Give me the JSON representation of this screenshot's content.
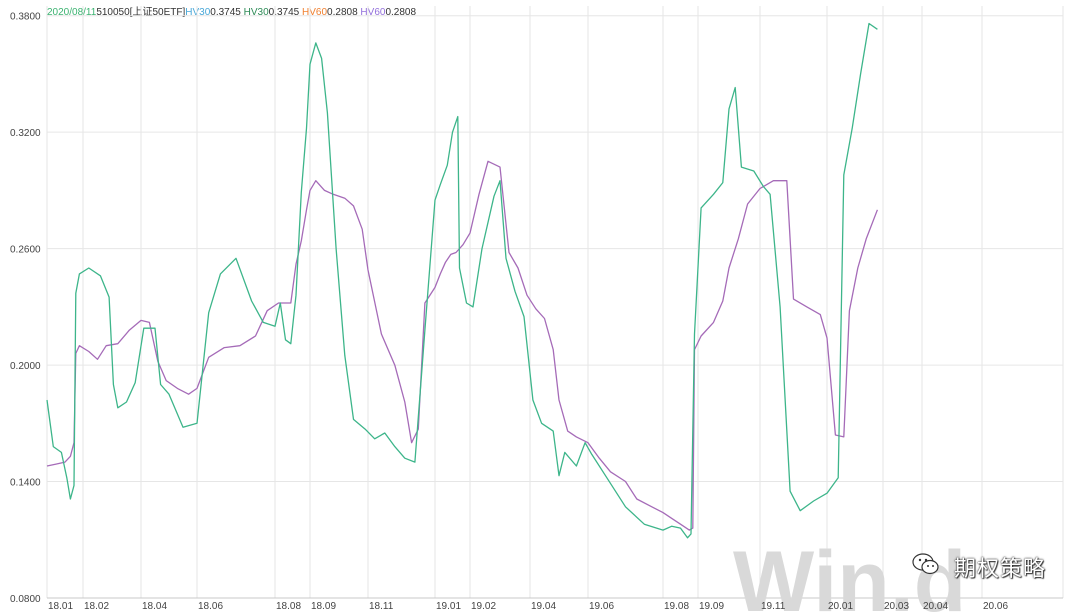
{
  "legend": {
    "date": "2020/08/11",
    "code": "510050[上证50ETF]",
    "hv30_a_label": "HV30",
    "hv30_a_value": "0.3745",
    "hv30_b_label": "HV30",
    "hv30_b_value": "0.3745",
    "hv60_a_label": "HV60",
    "hv60_a_value": "0.2808",
    "hv60_b_label": "HV60",
    "hv60_b_value": "0.2808"
  },
  "colors": {
    "date": "#3cb371",
    "code": "#333333",
    "hv30_a": "#4aa8d8",
    "hv30_b": "#2e8b57",
    "hv60_a": "#f08030",
    "hv60_b": "#9370db",
    "hv30_line": "#3db58a",
    "hv60_line": "#a56bb8",
    "grid": "#e6e6e6",
    "watermark": "#d9d9d9"
  },
  "watermark": "Win.d",
  "brand": "期权策略",
  "brand_icon": "wechat-icon",
  "chart_data": {
    "type": "line",
    "x": [
      "18.01",
      "18.02",
      "18.04",
      "18.06",
      "18.08",
      "18.09",
      "18.11",
      "19.01",
      "19.02",
      "19.04",
      "19.06",
      "19.08",
      "19.09",
      "19.11",
      "20.01",
      "20.03",
      "20.04",
      "20.06"
    ],
    "yticks": [
      "0.0800",
      "0.1400",
      "0.2000",
      "0.2600",
      "0.3200",
      "0.3800"
    ],
    "ylim": [
      0.08,
      0.385
    ],
    "grid": true,
    "series": [
      {
        "name": "HV30",
        "points": [
          [
            0,
            0.182
          ],
          [
            0.35,
            0.158
          ],
          [
            0.8,
            0.155
          ],
          [
            1.1,
            0.142
          ],
          [
            1.3,
            0.131
          ],
          [
            1.5,
            0.138
          ],
          [
            1.6,
            0.237
          ],
          [
            1.8,
            0.247
          ],
          [
            2.2,
            0.25
          ],
          [
            2.6,
            0.246
          ],
          [
            2.9,
            0.235
          ],
          [
            3.05,
            0.19
          ],
          [
            3.2,
            0.178
          ],
          [
            3.5,
            0.181
          ],
          [
            3.8,
            0.191
          ],
          [
            4.1,
            0.219
          ],
          [
            4.5,
            0.219
          ],
          [
            4.7,
            0.19
          ],
          [
            5.0,
            0.185
          ],
          [
            5.5,
            0.168
          ],
          [
            6.0,
            0.17
          ],
          [
            6.3,
            0.227
          ],
          [
            6.6,
            0.247
          ],
          [
            7.0,
            0.255
          ],
          [
            7.4,
            0.233
          ],
          [
            7.7,
            0.222
          ],
          [
            8.0,
            0.22
          ],
          [
            8.3,
            0.232
          ],
          [
            8.6,
            0.213
          ],
          [
            8.9,
            0.211
          ],
          [
            9.2,
            0.236
          ],
          [
            9.5,
            0.289
          ],
          [
            9.8,
            0.322
          ],
          [
            10.0,
            0.355
          ],
          [
            10.2,
            0.366
          ],
          [
            10.4,
            0.358
          ],
          [
            10.6,
            0.33
          ],
          [
            10.9,
            0.26
          ],
          [
            11.2,
            0.205
          ],
          [
            11.5,
            0.172
          ],
          [
            11.9,
            0.167
          ],
          [
            12.2,
            0.162
          ],
          [
            12.5,
            0.165
          ],
          [
            12.8,
            0.158
          ],
          [
            13.1,
            0.152
          ],
          [
            13.4,
            0.15
          ],
          [
            13.7,
            0.218
          ],
          [
            14.0,
            0.285
          ],
          [
            14.3,
            0.293
          ],
          [
            14.7,
            0.303
          ],
          [
            15.0,
            0.32
          ],
          [
            15.3,
            0.328
          ],
          [
            15.4,
            0.25
          ],
          [
            15.8,
            0.232
          ],
          [
            16.1,
            0.23
          ],
          [
            16.4,
            0.26
          ],
          [
            16.8,
            0.287
          ],
          [
            17.0,
            0.295
          ],
          [
            17.2,
            0.255
          ],
          [
            17.5,
            0.238
          ],
          [
            17.8,
            0.225
          ],
          [
            18.1,
            0.182
          ],
          [
            18.4,
            0.17
          ],
          [
            18.8,
            0.166
          ],
          [
            19.0,
            0.143
          ],
          [
            19.2,
            0.155
          ],
          [
            19.6,
            0.148
          ],
          [
            19.9,
            0.16
          ],
          [
            20.1,
            0.154
          ],
          [
            20.5,
            0.142
          ],
          [
            21.0,
            0.127
          ],
          [
            21.5,
            0.118
          ],
          [
            22.0,
            0.115
          ],
          [
            22.5,
            0.117
          ],
          [
            23.0,
            0.116
          ],
          [
            23.4,
            0.111
          ],
          [
            23.6,
            0.113
          ],
          [
            23.8,
            0.216
          ],
          [
            24.1,
            0.281
          ],
          [
            24.5,
            0.288
          ],
          [
            24.8,
            0.294
          ],
          [
            25.0,
            0.332
          ],
          [
            25.2,
            0.343
          ],
          [
            25.4,
            0.302
          ],
          [
            25.8,
            0.3
          ],
          [
            26.1,
            0.292
          ],
          [
            26.3,
            0.288
          ],
          [
            26.6,
            0.23
          ],
          [
            26.9,
            0.135
          ],
          [
            27.2,
            0.125
          ],
          [
            27.6,
            0.13
          ],
          [
            28.0,
            0.134
          ],
          [
            28.4,
            0.142
          ],
          [
            28.6,
            0.298
          ],
          [
            28.9,
            0.322
          ],
          [
            29.2,
            0.35
          ],
          [
            29.5,
            0.376
          ],
          [
            29.8,
            0.373
          ]
        ]
      },
      {
        "name": "HV60",
        "points": [
          [
            0,
            0.148
          ],
          [
            0.5,
            0.149
          ],
          [
            1.0,
            0.15
          ],
          [
            1.3,
            0.153
          ],
          [
            1.5,
            0.16
          ],
          [
            1.6,
            0.206
          ],
          [
            1.8,
            0.21
          ],
          [
            2.2,
            0.207
          ],
          [
            2.5,
            0.203
          ],
          [
            2.8,
            0.21
          ],
          [
            3.2,
            0.211
          ],
          [
            3.6,
            0.218
          ],
          [
            4.0,
            0.223
          ],
          [
            4.3,
            0.222
          ],
          [
            4.6,
            0.202
          ],
          [
            4.9,
            0.192
          ],
          [
            5.3,
            0.188
          ],
          [
            5.7,
            0.185
          ],
          [
            6.0,
            0.188
          ],
          [
            6.3,
            0.204
          ],
          [
            6.7,
            0.209
          ],
          [
            7.1,
            0.21
          ],
          [
            7.5,
            0.215
          ],
          [
            7.8,
            0.228
          ],
          [
            8.2,
            0.232
          ],
          [
            8.6,
            0.232
          ],
          [
            8.9,
            0.232
          ],
          [
            9.2,
            0.252
          ],
          [
            9.5,
            0.264
          ],
          [
            9.8,
            0.28
          ],
          [
            10.0,
            0.29
          ],
          [
            10.2,
            0.295
          ],
          [
            10.5,
            0.29
          ],
          [
            10.8,
            0.288
          ],
          [
            11.2,
            0.286
          ],
          [
            11.5,
            0.282
          ],
          [
            11.8,
            0.27
          ],
          [
            12.0,
            0.249
          ],
          [
            12.4,
            0.216
          ],
          [
            12.8,
            0.2
          ],
          [
            13.1,
            0.181
          ],
          [
            13.3,
            0.16
          ],
          [
            13.5,
            0.167
          ],
          [
            13.7,
            0.232
          ],
          [
            14.0,
            0.24
          ],
          [
            14.3,
            0.247
          ],
          [
            14.6,
            0.253
          ],
          [
            14.9,
            0.257
          ],
          [
            15.2,
            0.258
          ],
          [
            15.6,
            0.262
          ],
          [
            16.0,
            0.268
          ],
          [
            16.3,
            0.288
          ],
          [
            16.6,
            0.305
          ],
          [
            17.0,
            0.302
          ],
          [
            17.3,
            0.258
          ],
          [
            17.6,
            0.25
          ],
          [
            17.9,
            0.236
          ],
          [
            18.2,
            0.229
          ],
          [
            18.5,
            0.224
          ],
          [
            18.8,
            0.208
          ],
          [
            19.0,
            0.182
          ],
          [
            19.3,
            0.166
          ],
          [
            19.6,
            0.163
          ],
          [
            20.0,
            0.16
          ],
          [
            20.3,
            0.152
          ],
          [
            20.6,
            0.145
          ],
          [
            21.0,
            0.14
          ],
          [
            21.3,
            0.131
          ],
          [
            21.7,
            0.127
          ],
          [
            22.0,
            0.124
          ],
          [
            22.5,
            0.121
          ],
          [
            23.0,
            0.118
          ],
          [
            23.5,
            0.115
          ],
          [
            23.7,
            0.116
          ],
          [
            23.8,
            0.208
          ],
          [
            24.1,
            0.215
          ],
          [
            24.5,
            0.222
          ],
          [
            24.8,
            0.233
          ],
          [
            25.0,
            0.25
          ],
          [
            25.3,
            0.265
          ],
          [
            25.6,
            0.283
          ],
          [
            26.0,
            0.291
          ],
          [
            26.4,
            0.295
          ],
          [
            26.8,
            0.295
          ],
          [
            27.0,
            0.234
          ],
          [
            27.4,
            0.23
          ],
          [
            27.8,
            0.226
          ],
          [
            28.0,
            0.214
          ],
          [
            28.3,
            0.164
          ],
          [
            28.6,
            0.163
          ],
          [
            28.8,
            0.228
          ],
          [
            29.1,
            0.25
          ],
          [
            29.4,
            0.265
          ],
          [
            29.8,
            0.28
          ]
        ]
      }
    ]
  }
}
